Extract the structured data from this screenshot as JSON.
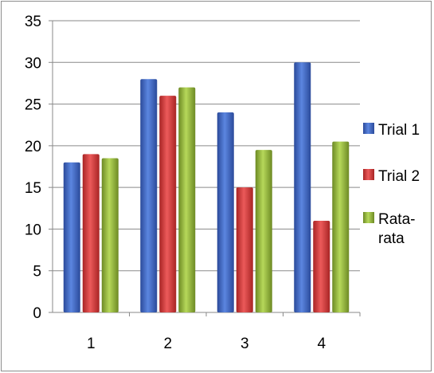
{
  "chart_data": {
    "type": "bar",
    "title": "",
    "xlabel": "",
    "ylabel": "",
    "categories": [
      "1",
      "2",
      "3",
      "4"
    ],
    "series": [
      {
        "name": "Trial 1",
        "values": [
          18,
          28,
          24,
          30
        ],
        "color": "#3a62c0"
      },
      {
        "name": "Trial 2",
        "values": [
          19,
          26,
          15,
          11
        ],
        "color": "#d03434"
      },
      {
        "name": "Rata-rata",
        "values": [
          18.5,
          27,
          19.5,
          20.5
        ],
        "color": "#94b83a"
      }
    ],
    "ylim": [
      0,
      35
    ],
    "yticks": [
      0,
      5,
      10,
      15,
      20,
      25,
      30,
      35
    ],
    "grid": true,
    "legend_position": "right"
  }
}
